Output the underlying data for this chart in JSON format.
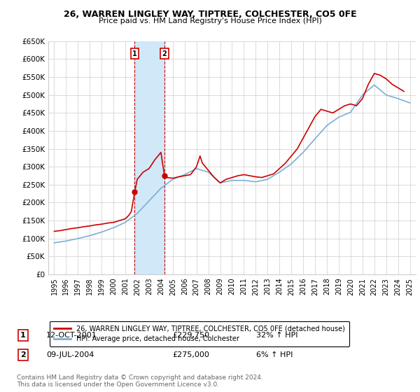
{
  "title": "26, WARREN LINGLEY WAY, TIPTREE, COLCHESTER, CO5 0FE",
  "subtitle": "Price paid vs. HM Land Registry's House Price Index (HPI)",
  "legend_line1": "26, WARREN LINGLEY WAY, TIPTREE, COLCHESTER, CO5 0FE (detached house)",
  "legend_line2": "HPI: Average price, detached house, Colchester",
  "purchase1_date": "12-OCT-2001",
  "purchase1_price": "£229,750",
  "purchase1_hpi": "32% ↑ HPI",
  "purchase1_year": 2001.79,
  "purchase1_value": 229750,
  "purchase2_date": "09-JUL-2004",
  "purchase2_price": "£275,000",
  "purchase2_hpi": "6% ↑ HPI",
  "purchase2_year": 2004.3,
  "purchase2_value": 275000,
  "ylim": [
    0,
    650000
  ],
  "xlim": [
    1994.5,
    2025.5
  ],
  "yticks": [
    0,
    50000,
    100000,
    150000,
    200000,
    250000,
    300000,
    350000,
    400000,
    450000,
    500000,
    550000,
    600000,
    650000
  ],
  "xticks": [
    1995,
    1996,
    1997,
    1998,
    1999,
    2000,
    2001,
    2002,
    2003,
    2004,
    2005,
    2006,
    2007,
    2008,
    2009,
    2010,
    2011,
    2012,
    2013,
    2014,
    2015,
    2016,
    2017,
    2018,
    2019,
    2020,
    2021,
    2022,
    2023,
    2024,
    2025
  ],
  "red_color": "#cc0000",
  "blue_color": "#7bafd4",
  "shade_color": "#d0e8f8",
  "grid_color": "#cccccc",
  "background_color": "#ffffff",
  "footnote": "Contains HM Land Registry data © Crown copyright and database right 2024.\nThis data is licensed under the Open Government Licence v3.0.",
  "red_years": [
    1995,
    1995.5,
    1996,
    1996.5,
    1997,
    1997.5,
    1998,
    1998.5,
    1999,
    1999.5,
    2000,
    2000.5,
    2001,
    2001.3,
    2001.5,
    2001.79,
    2002,
    2002.5,
    2003,
    2003.5,
    2004,
    2004.3,
    2004.5,
    2005,
    2005.5,
    2006,
    2006.5,
    2007,
    2007.3,
    2007.5,
    2008,
    2008.5,
    2009,
    2009.5,
    2010,
    2010.5,
    2011,
    2011.5,
    2012,
    2012.5,
    2013,
    2013.5,
    2014,
    2014.5,
    2015,
    2015.5,
    2016,
    2016.5,
    2017,
    2017.5,
    2018,
    2018.5,
    2019,
    2019.5,
    2020,
    2020.5,
    2021,
    2021.5,
    2022,
    2022.5,
    2023,
    2023.5,
    2024,
    2024.5
  ],
  "red_vals": [
    120000,
    122000,
    125000,
    128000,
    130000,
    133000,
    135000,
    138000,
    140000,
    143000,
    145000,
    150000,
    155000,
    165000,
    175000,
    229750,
    265000,
    285000,
    295000,
    320000,
    340000,
    275000,
    270000,
    268000,
    272000,
    275000,
    278000,
    300000,
    330000,
    310000,
    290000,
    270000,
    255000,
    265000,
    270000,
    275000,
    278000,
    275000,
    272000,
    270000,
    275000,
    280000,
    295000,
    310000,
    330000,
    350000,
    380000,
    410000,
    440000,
    460000,
    455000,
    450000,
    460000,
    470000,
    475000,
    470000,
    490000,
    530000,
    560000,
    555000,
    545000,
    530000,
    520000,
    510000
  ],
  "blue_years": [
    1995,
    1996,
    1997,
    1998,
    1999,
    2000,
    2001,
    2002,
    2003,
    2004,
    2005,
    2006,
    2007,
    2008,
    2009,
    2010,
    2011,
    2012,
    2013,
    2014,
    2015,
    2016,
    2017,
    2018,
    2019,
    2020,
    2021,
    2022,
    2023,
    2024,
    2025
  ],
  "blue_vals": [
    88000,
    93000,
    100000,
    108000,
    118000,
    130000,
    145000,
    170000,
    205000,
    240000,
    265000,
    278000,
    295000,
    285000,
    255000,
    262000,
    262000,
    258000,
    265000,
    285000,
    308000,
    340000,
    378000,
    415000,
    438000,
    452000,
    500000,
    528000,
    500000,
    490000,
    478000
  ]
}
